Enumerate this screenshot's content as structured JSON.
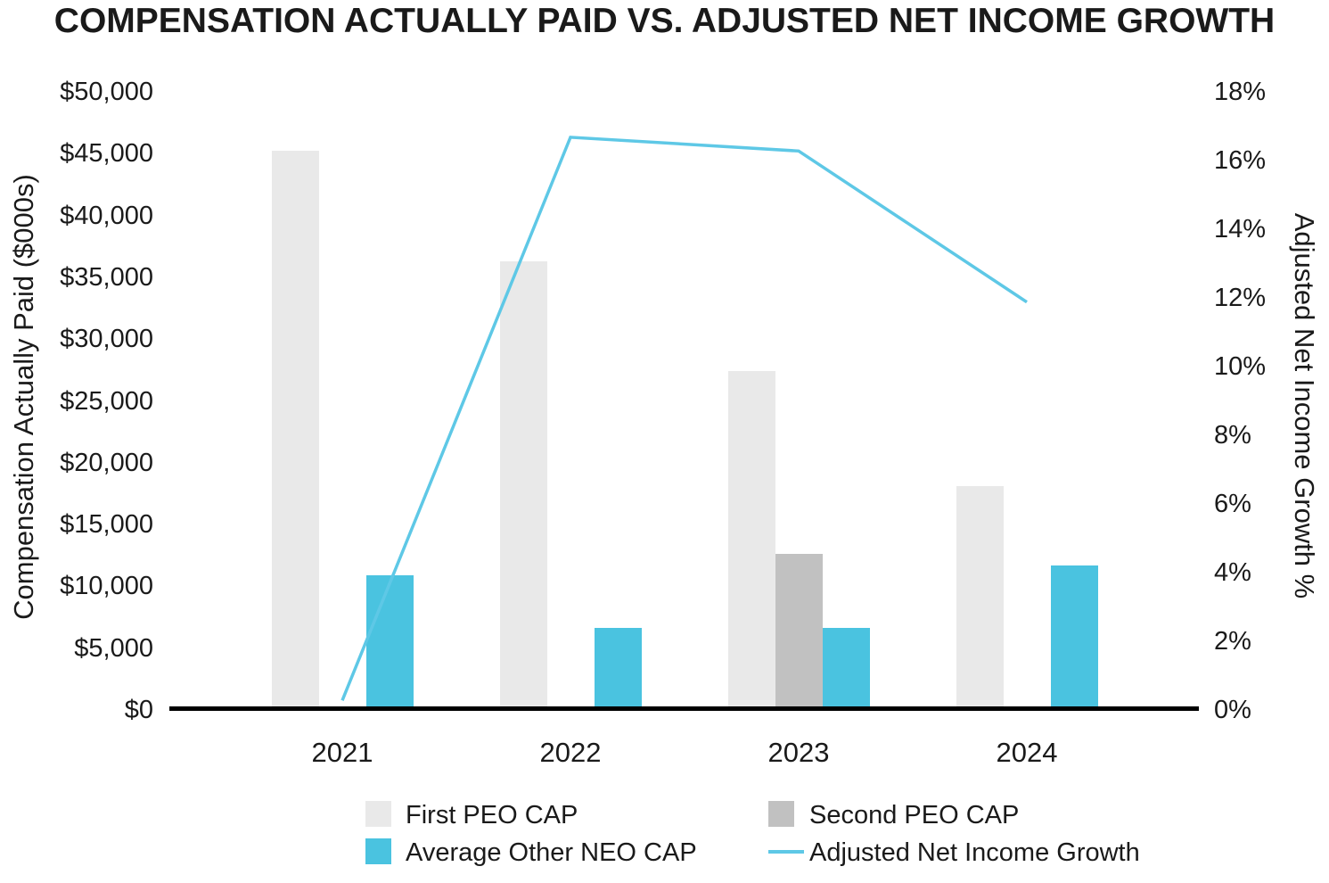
{
  "title": "COMPENSATION ACTUALLY PAID VS. ADJUSTED NET INCOME GROWTH",
  "chart_data": {
    "type": "bar+line combo",
    "categories": [
      "2021",
      "2022",
      "2023",
      "2024"
    ],
    "series": [
      {
        "name": "First PEO CAP",
        "kind": "bar",
        "axis": "left",
        "color": "#e9e9e9",
        "values": [
          45000,
          36100,
          27200,
          17900
        ]
      },
      {
        "name": "Second PEO CAP",
        "kind": "bar",
        "axis": "left",
        "color": "#c1c1c1",
        "values": [
          null,
          null,
          12400,
          null
        ]
      },
      {
        "name": "Average Other NEO CAP",
        "kind": "bar",
        "axis": "left",
        "color": "#4ac3e0",
        "values": [
          10700,
          6400,
          6400,
          11500
        ]
      },
      {
        "name": "Adjusted Net Income Growth",
        "kind": "line",
        "axis": "right",
        "color": "#5ec8e6",
        "values": [
          0.2,
          16.6,
          16.2,
          11.8
        ]
      }
    ],
    "left_axis": {
      "label": "Compensation Actually Paid ($000s)",
      "min": 0,
      "max": 50000,
      "step": 5000,
      "tick_prefix": "$"
    },
    "right_axis": {
      "label": "Adjusted Net Income Growth %",
      "min": 0,
      "max": 18,
      "step": 2,
      "tick_suffix": "%"
    },
    "grid": false,
    "legend_position": "bottom"
  }
}
